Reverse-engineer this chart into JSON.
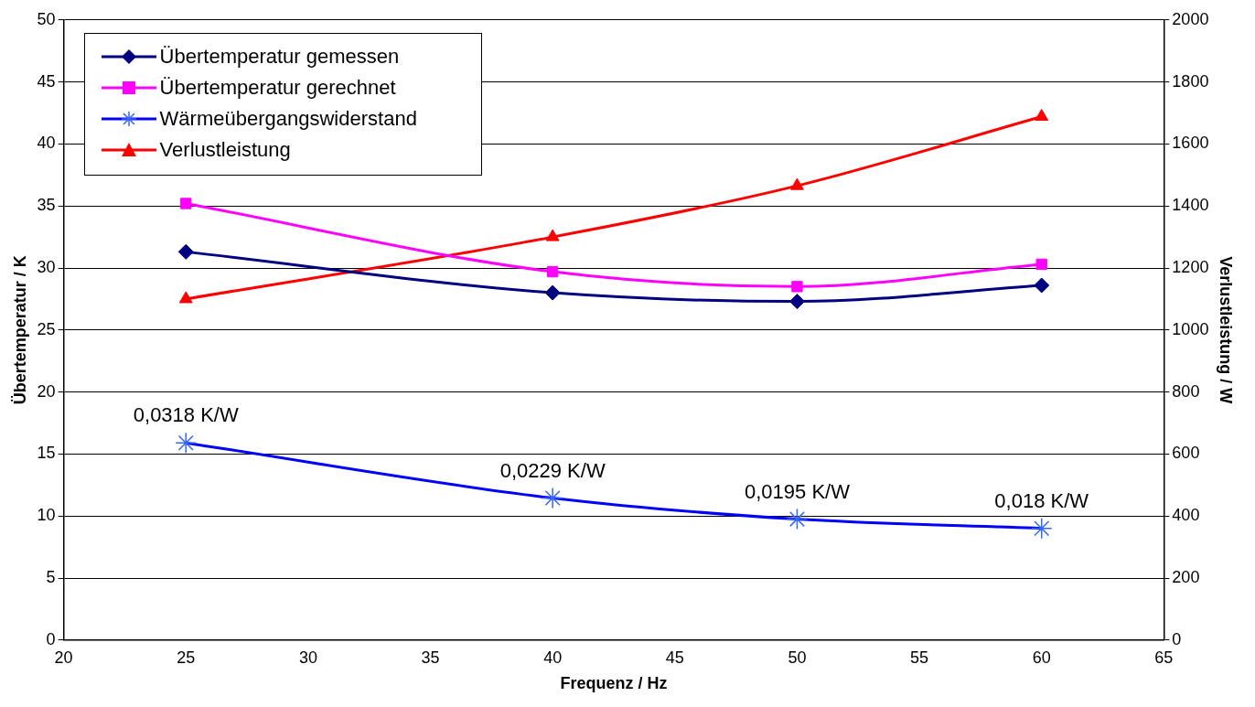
{
  "chart_data": {
    "type": "line",
    "xlabel": "Frequenz / Hz",
    "ylabel": "Übertemperatur / K",
    "y2label": "Verlustleistung / W",
    "x": [
      25,
      40,
      50,
      60
    ],
    "xlim": [
      20,
      65
    ],
    "xticks": [
      20,
      25,
      30,
      35,
      40,
      45,
      50,
      55,
      60,
      65
    ],
    "ylim": [
      0,
      50
    ],
    "yticks": [
      0,
      5,
      10,
      15,
      20,
      25,
      30,
      35,
      40,
      45,
      50
    ],
    "y2lim": [
      0,
      2000
    ],
    "y2ticks": [
      0,
      200,
      400,
      600,
      800,
      1000,
      1200,
      1400,
      1600,
      1800,
      2000
    ],
    "annotations": [
      {
        "text": "0,0318 K/W",
        "x": 25,
        "y": 15.9
      },
      {
        "text": "0,0229 K/W",
        "x": 40,
        "y": 11.45
      },
      {
        "text": "0,0195 K/W",
        "x": 50,
        "y": 9.75
      },
      {
        "text": "0,018 K/W",
        "x": 60,
        "y": 9.0
      }
    ],
    "grid": "y",
    "legend": "top left",
    "series": [
      {
        "name": "Übertemperatur gemessen",
        "color": "#000080",
        "marker": "diamond",
        "values": [
          31.3,
          28.0,
          27.3,
          28.6
        ]
      },
      {
        "name": "Übertemperatur gerechnet",
        "color": "#ff00ff",
        "marker": "square",
        "values": [
          35.2,
          29.7,
          28.5,
          30.3
        ]
      },
      {
        "name": "Wärmeübergangswiderstand",
        "color": "#0000ff",
        "marker": "cross",
        "values": [
          15.9,
          11.45,
          9.75,
          9.0
        ]
      },
      {
        "name": "Verlustleistung",
        "color": "#ff0000",
        "marker": "triangle",
        "axis": "y2",
        "values": [
          1100,
          1300,
          1465,
          1688
        ]
      }
    ]
  }
}
